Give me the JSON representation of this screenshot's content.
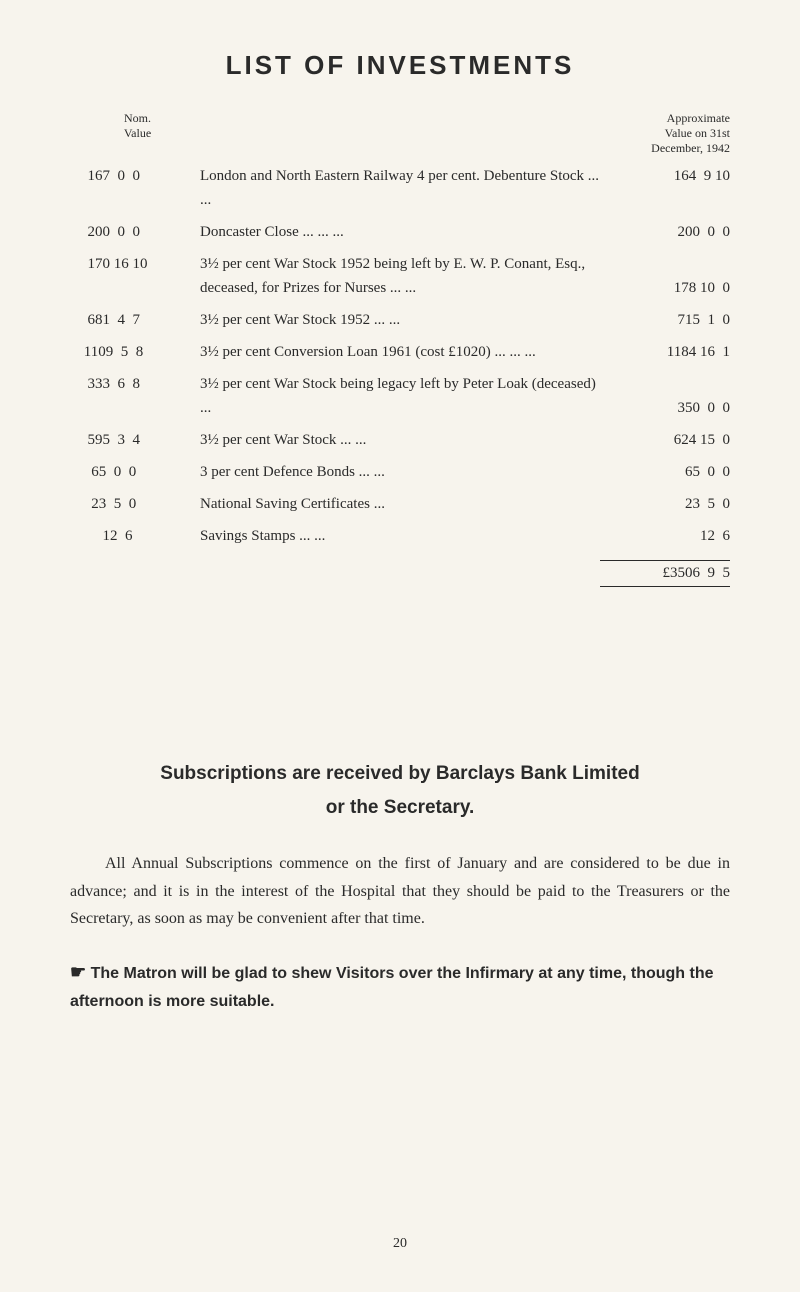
{
  "title": "LIST OF INVESTMENTS",
  "headers": {
    "nom": "Nom.\nValue",
    "approx": "Approximate\nValue on 31st\nDecember, 1942"
  },
  "rows": [
    {
      "nom": "  167  0  0",
      "desc": "London and North Eastern Railway 4 per cent. Debenture Stock ...     ...",
      "val": " 164  9 10"
    },
    {
      "nom": "  200  0  0",
      "desc": "Doncaster Close     ...     ...     ...",
      "val": " 200  0  0"
    },
    {
      "nom": "  170 16 10",
      "desc": "3½ per cent War Stock 1952 being left by E. W. P. Conant, Esq., deceased, for Prizes for Nurses          ...     ...",
      "val": " 178 10  0"
    },
    {
      "nom": "  681  4  7",
      "desc": "3½ per cent War Stock 1952 ...     ...",
      "val": " 715  1  0"
    },
    {
      "nom": " 1109  5  8",
      "desc": "3½ per cent Conversion Loan 1961 (cost £1020) ...          ...     ...",
      "val": "1184 16  1"
    },
    {
      "nom": "  333  6  8",
      "desc": "3½ per cent War Stock being legacy left by Peter Loak (deceased)          ...",
      "val": " 350  0  0"
    },
    {
      "nom": "  595  3  4",
      "desc": "3½ per cent War Stock     ...     ...",
      "val": " 624 15  0"
    },
    {
      "nom": "   65  0  0",
      "desc": "3 per cent Defence Bonds ...     ...",
      "val": "  65  0  0"
    },
    {
      "nom": "   23  5  0",
      "desc": "National Saving Certificates          ...",
      "val": "  23  5  0"
    },
    {
      "nom": "      12  6",
      "desc": "Savings Stamps     ...     ...",
      "val": "     12  6"
    }
  ],
  "total": "£3506  9  5",
  "subscriptions": {
    "heading1": "Subscriptions are received by Barclays Bank Limited",
    "heading2": "or the Secretary."
  },
  "bodyText": "All Annual Subscriptions commence on the first of January and are considered to be due in advance; and it is in the interest of the Hospital that they should be paid to the Treasurers or the Secretary, as soon as may be convenient after that time.",
  "notice": "The Matron will be glad to shew Visitors over the Infirmary at any time, though the afternoon is more suitable.",
  "pageNumber": "20"
}
